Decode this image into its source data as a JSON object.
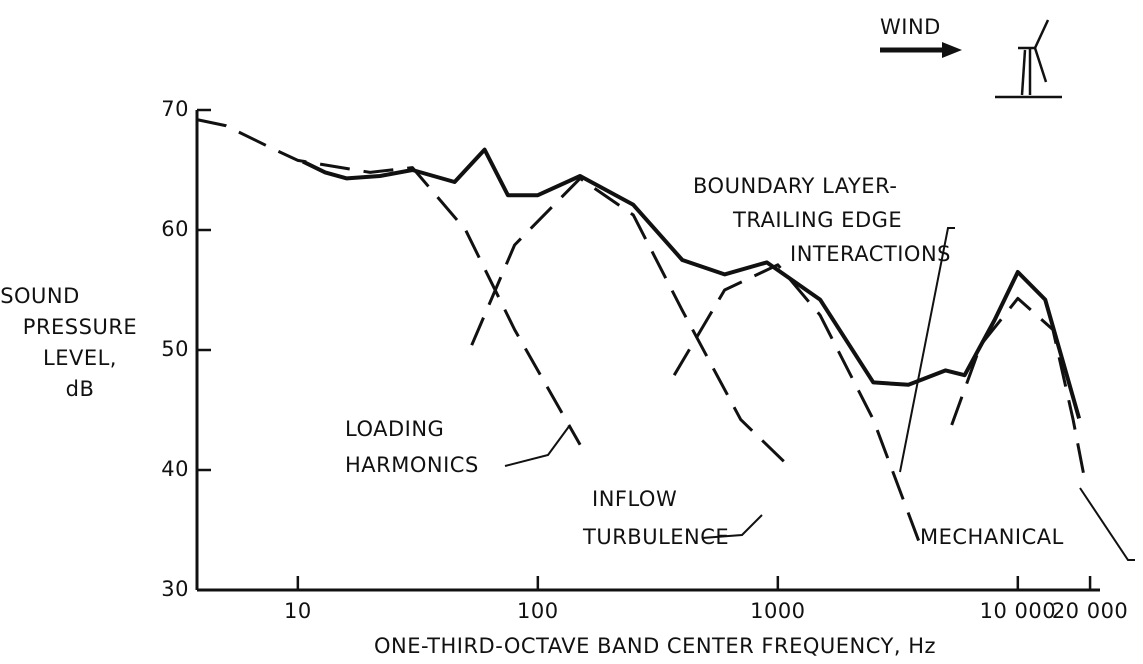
{
  "chart_data": {
    "type": "line",
    "y_label_lines": [
      "SOUND",
      "PRESSURE",
      "LEVEL,",
      "dB"
    ],
    "x_label": "ONE-THIRD-OCTAVE BAND CENTER FREQUENCY, Hz",
    "wind_label": "WIND",
    "log_x": true,
    "xlim": [
      3.8,
      22000
    ],
    "xticks": [
      10,
      100,
      1000,
      {
        "value": 10000,
        "label": "10 000"
      },
      {
        "value": 20000,
        "label": "20 000"
      }
    ],
    "ylim": [
      30,
      70
    ],
    "yticks": [
      30,
      40,
      50,
      60,
      70
    ],
    "series": [
      {
        "color": "#111111",
        "dashed": false,
        "x": [
          10.5,
          13,
          16,
          22,
          30,
          45,
          60,
          75,
          100,
          150,
          250,
          400,
          600,
          900,
          1500,
          2500,
          3500,
          5000,
          6000,
          8000,
          10000,
          13000,
          16000,
          18000
        ],
        "values": [
          65.7,
          64.8,
          64.3,
          64.5,
          65,
          64,
          66.7,
          62.9,
          62.9,
          64.5,
          62.1,
          57.5,
          56.3,
          57.3,
          54.2,
          47.3,
          47.1,
          48.3,
          47.9,
          52.5,
          56.5,
          54.2,
          47.9,
          44.3
        ]
      },
      {
        "color": "#111111",
        "dashed": true,
        "x": [
          3.8,
          5,
          8,
          10,
          20,
          30,
          50,
          80,
          150
        ],
        "values": [
          69.2,
          68.7,
          66.7,
          65.8,
          64.8,
          65.2,
          60,
          51.7,
          42.1
        ]
      },
      {
        "color": "#111111",
        "dashed": true,
        "x": [
          53,
          80,
          150,
          250,
          400,
          700,
          1100
        ],
        "values": [
          50.4,
          58.75,
          64.3,
          61.25,
          53.3,
          44.2,
          40.4
        ]
      },
      {
        "color": "#111111",
        "dashed": true,
        "x": [
          370,
          600,
          1000,
          1500,
          2500,
          4000
        ],
        "values": [
          47.9,
          55,
          57.1,
          52.9,
          44.2,
          33.3
        ]
      },
      {
        "color": "#111111",
        "dashed": true,
        "x": [
          5300,
          7000,
          10000,
          14000,
          17000,
          19000
        ],
        "values": [
          43.75,
          50.4,
          54.3,
          51.7,
          44.2,
          39.2
        ]
      }
    ],
    "annotations": [
      {
        "lines": [
          "LOADING",
          "HARMONICS"
        ]
      },
      {
        "lines": [
          "INFLOW",
          "TURBULENCE"
        ]
      },
      {
        "lines": [
          "BOUNDARY LAYER-",
          "TRAILING EDGE",
          "INTERACTIONS"
        ]
      },
      {
        "lines": [
          "MECHANICAL"
        ]
      }
    ]
  }
}
